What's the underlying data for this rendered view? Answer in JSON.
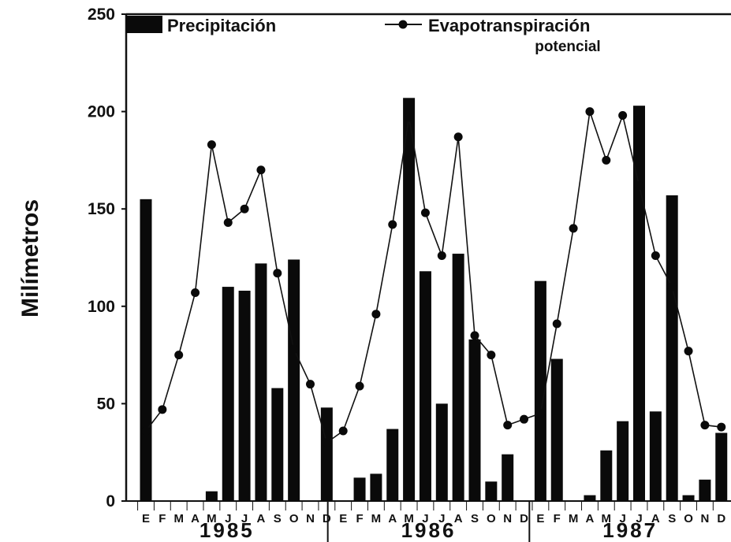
{
  "chart_data": {
    "type": "bar+line",
    "ylabel": "Milímetros",
    "ylim": [
      0,
      250
    ],
    "yticks": [
      "0",
      "50",
      "100",
      "150",
      "200",
      "250"
    ],
    "grid": false,
    "legend_position": "top",
    "months": [
      "E",
      "F",
      "M",
      "A",
      "M",
      "J",
      "J",
      "A",
      "S",
      "O",
      "N",
      "D"
    ],
    "years": [
      "1985",
      "1986",
      "1987"
    ],
    "series": [
      {
        "name": "Precipitación",
        "kind": "bar",
        "values": [
          155,
          0,
          0,
          0,
          5,
          110,
          108,
          122,
          58,
          124,
          0,
          48,
          0,
          12,
          14,
          37,
          207,
          118,
          50,
          127,
          83,
          10,
          24,
          0,
          113,
          73,
          0,
          3,
          26,
          41,
          203,
          46,
          157,
          3,
          11,
          35
        ]
      },
      {
        "name": "Evapotranspiración potencial",
        "kind": "line",
        "values": [
          36,
          47,
          75,
          107,
          183,
          143,
          150,
          170,
          117,
          78,
          60,
          30,
          36,
          59,
          96,
          142,
          197,
          148,
          126,
          187,
          85,
          75,
          39,
          42,
          45,
          91,
          140,
          200,
          175,
          198,
          162,
          126,
          110,
          77,
          39,
          38
        ]
      }
    ],
    "legend": {
      "bar_label": "Precipitación",
      "line_label_line1": "Evapotranspiración",
      "line_label_line2": "potencial"
    }
  }
}
